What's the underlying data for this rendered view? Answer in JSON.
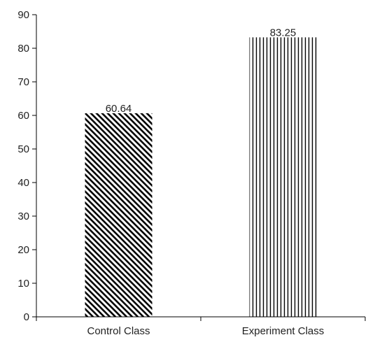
{
  "chart_data": {
    "type": "bar",
    "title": "",
    "xlabel": "",
    "ylabel": "",
    "categories": [
      "Control Class",
      "Experiment Class"
    ],
    "values": [
      60.64,
      83.25
    ],
    "data_labels": [
      "60.64",
      "83.25"
    ],
    "ylim": [
      0,
      90
    ],
    "yticks": [
      0,
      10,
      20,
      30,
      40,
      50,
      60,
      70,
      80,
      90
    ],
    "grid": false,
    "legend": "none",
    "bar_patterns": [
      "diagonal-hatch",
      "vertical-stripes"
    ],
    "colors": {
      "axis": "#000000",
      "bar_pattern": "#000000",
      "background": "#ffffff"
    }
  }
}
